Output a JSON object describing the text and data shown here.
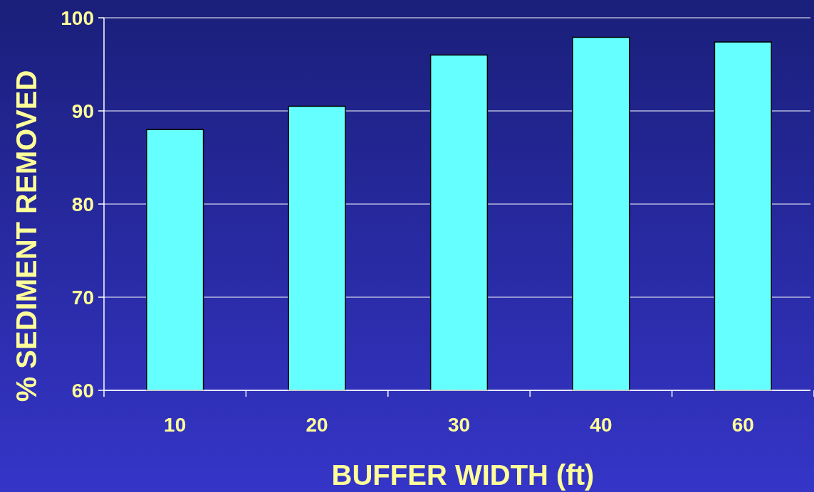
{
  "chart_data": {
    "type": "bar",
    "xlabel": "BUFFER WIDTH (ft)",
    "ylabel": "% SEDIMENT REMOVED",
    "categories": [
      "10",
      "20",
      "30",
      "40",
      "60"
    ],
    "values": [
      88,
      90.5,
      96,
      97.9,
      97.4
    ],
    "color": "#66ffff",
    "ylim": [
      60,
      100
    ],
    "yticks": [
      60,
      70,
      80,
      90,
      100
    ],
    "grid": "y"
  }
}
